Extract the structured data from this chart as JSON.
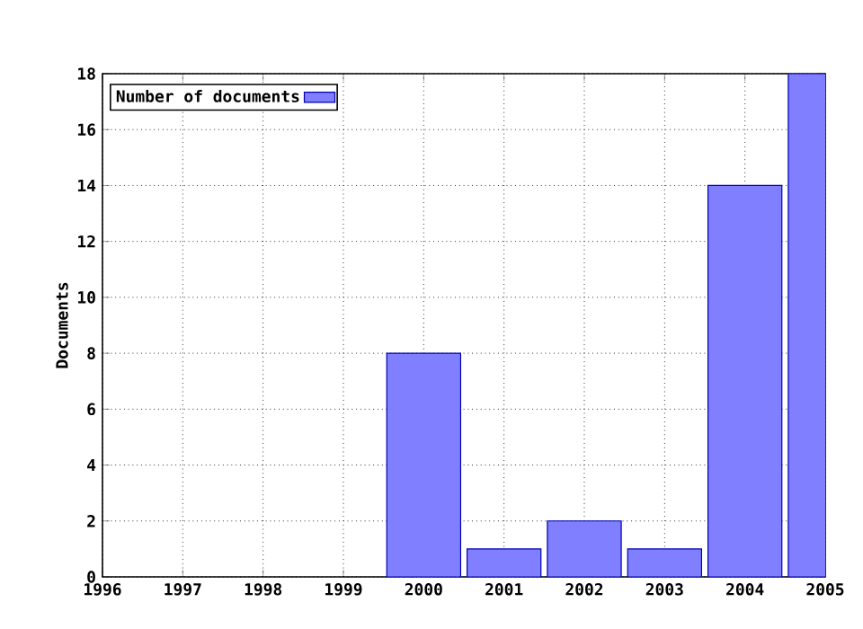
{
  "chart_data": {
    "type": "bar",
    "ylabel": "Documents",
    "x": [
      2000,
      2001,
      2002,
      2003,
      2004,
      2005
    ],
    "series": [
      {
        "name": "Number of documents",
        "color": "#7f7fff",
        "values": [
          8,
          1,
          2,
          1,
          14,
          18
        ]
      }
    ],
    "xlim": [
      1996,
      2005
    ],
    "ylim": [
      0,
      18
    ],
    "xticks": [
      1996,
      1997,
      1998,
      1999,
      2000,
      2001,
      2002,
      2003,
      2004,
      2005
    ],
    "yticks": [
      0,
      2,
      4,
      6,
      8,
      10,
      12,
      14,
      16,
      18
    ],
    "grid": true,
    "legend": "top left"
  }
}
